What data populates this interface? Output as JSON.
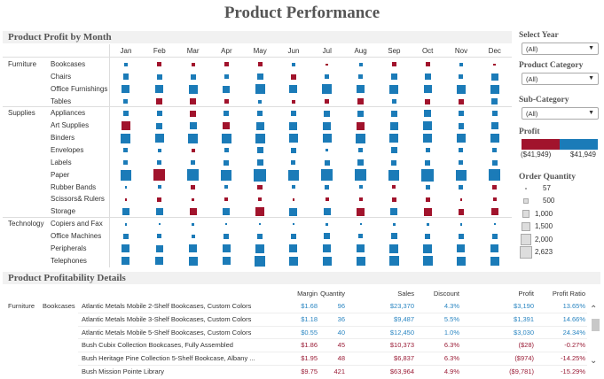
{
  "title": "Product Performance",
  "profit_by_month": {
    "title": "Product Profit by Month",
    "months": [
      "Jan",
      "Feb",
      "Mar",
      "Apr",
      "May",
      "Jun",
      "Jul",
      "Aug",
      "Sep",
      "Oct",
      "Nov",
      "Dec"
    ],
    "colors": {
      "positive": "#1b7bb8",
      "negative": "#a1132c"
    },
    "groups": [
      {
        "category": "Furniture",
        "rows": [
          {
            "name": "Bookcases",
            "qty": [
              215,
              335,
              215,
              335,
              335,
              215,
              120,
              215,
              335,
              335,
              215,
              120
            ],
            "neg": [
              0,
              1,
              1,
              1,
              1,
              0,
              1,
              0,
              1,
              1,
              0,
              1
            ]
          },
          {
            "name": "Chairs",
            "qty": [
              655,
              480,
              480,
              335,
              655,
              480,
              335,
              335,
              655,
              655,
              335,
              855
            ],
            "neg": [
              0,
              0,
              0,
              0,
              0,
              1,
              0,
              0,
              0,
              0,
              0,
              0
            ]
          },
          {
            "name": "Office Furnishings",
            "qty": [
              1085,
              1085,
              1340,
              855,
              1620,
              1085,
              1620,
              1085,
              1340,
              1085,
              1340,
              1340
            ],
            "neg": [
              0,
              0,
              0,
              0,
              0,
              0,
              0,
              0,
              0,
              0,
              0,
              0
            ]
          },
          {
            "name": "Tables",
            "qty": [
              335,
              655,
              655,
              335,
              215,
              215,
              335,
              655,
              335,
              480,
              480,
              655
            ],
            "neg": [
              0,
              1,
              1,
              1,
              0,
              1,
              1,
              1,
              0,
              1,
              1,
              0
            ]
          }
        ]
      },
      {
        "category": "Supplies",
        "rows": [
          {
            "name": "Appliances",
            "qty": [
              480,
              480,
              655,
              480,
              480,
              480,
              655,
              655,
              655,
              855,
              480,
              480
            ],
            "neg": [
              0,
              0,
              1,
              0,
              0,
              0,
              0,
              0,
              0,
              0,
              0,
              0
            ]
          },
          {
            "name": "Art Supplies",
            "qty": [
              1340,
              655,
              855,
              855,
              1085,
              1085,
              1085,
              1085,
              1085,
              1340,
              655,
              855
            ],
            "neg": [
              1,
              0,
              0,
              1,
              0,
              0,
              0,
              1,
              0,
              0,
              0,
              0
            ]
          },
          {
            "name": "Binders",
            "qty": [
              1620,
              1340,
              1620,
              1620,
              1620,
              1340,
              1340,
              1620,
              1340,
              1340,
              1340,
              1340
            ],
            "neg": [
              0,
              0,
              0,
              0,
              0,
              0,
              0,
              0,
              0,
              0,
              0,
              0
            ]
          },
          {
            "name": "Envelopes",
            "qty": [
              335,
              215,
              215,
              335,
              655,
              480,
              120,
              335,
              655,
              335,
              335,
              335
            ],
            "neg": [
              0,
              0,
              1,
              0,
              0,
              0,
              0,
              0,
              0,
              0,
              0,
              0
            ]
          },
          {
            "name": "Labels",
            "qty": [
              335,
              335,
              335,
              480,
              655,
              335,
              480,
              655,
              480,
              480,
              335,
              480
            ],
            "neg": [
              0,
              0,
              0,
              0,
              0,
              0,
              0,
              0,
              0,
              0,
              0,
              0
            ]
          },
          {
            "name": "Paper",
            "qty": [
              1925,
              2260,
              2260,
              1925,
              2623,
              1925,
              2260,
              2260,
              1925,
              2623,
              1925,
              2260
            ],
            "neg": [
              0,
              1,
              0,
              0,
              0,
              0,
              0,
              0,
              0,
              0,
              0,
              0
            ]
          },
          {
            "name": "Rubber Bands",
            "qty": [
              120,
              215,
              335,
              215,
              480,
              215,
              335,
              215,
              215,
              335,
              335,
              335
            ],
            "neg": [
              0,
              0,
              1,
              0,
              1,
              0,
              0,
              0,
              1,
              0,
              0,
              1
            ]
          },
          {
            "name": "Scissors& Rulers",
            "qty": [
              120,
              335,
              120,
              215,
              215,
              120,
              215,
              215,
              335,
              335,
              120,
              215
            ],
            "neg": [
              1,
              1,
              1,
              1,
              1,
              1,
              1,
              1,
              1,
              1,
              1,
              1
            ]
          },
          {
            "name": "Storage",
            "qty": [
              855,
              855,
              855,
              855,
              1340,
              1085,
              855,
              1085,
              855,
              1085,
              655,
              855
            ],
            "neg": [
              0,
              0,
              1,
              0,
              1,
              0,
              0,
              1,
              0,
              1,
              1,
              1
            ]
          }
        ]
      },
      {
        "category": "Technology",
        "rows": [
          {
            "name": "Copiers and Fax",
            "qty": [
              120,
              57,
              120,
              57,
              57,
              57,
              120,
              57,
              120,
              120,
              120,
              57
            ],
            "neg": [
              0,
              0,
              0,
              0,
              0,
              0,
              0,
              0,
              0,
              0,
              0,
              0
            ]
          },
          {
            "name": "Office Machines",
            "qty": [
              480,
              335,
              215,
              480,
              480,
              480,
              655,
              335,
              655,
              480,
              480,
              480
            ],
            "neg": [
              0,
              0,
              0,
              0,
              0,
              0,
              0,
              0,
              0,
              0,
              0,
              0
            ]
          },
          {
            "name": "Peripherals",
            "qty": [
              1085,
              855,
              1085,
              1085,
              1340,
              1085,
              1085,
              1085,
              1340,
              1340,
              1085,
              1085
            ],
            "neg": [
              0,
              0,
              0,
              0,
              0,
              0,
              0,
              0,
              0,
              0,
              0,
              0
            ]
          },
          {
            "name": "Telephones",
            "qty": [
              1085,
              1085,
              1340,
              1085,
              1925,
              1340,
              1340,
              1340,
              1620,
              1620,
              1340,
              1340
            ],
            "neg": [
              0,
              0,
              0,
              0,
              0,
              0,
              0,
              0,
              0,
              0,
              0,
              0
            ]
          }
        ]
      }
    ]
  },
  "filters": {
    "year": {
      "label": "Select Year",
      "value": "(All)"
    },
    "category": {
      "label": "Product Category",
      "value": "(All)"
    },
    "subcategory": {
      "label": "Sub-Category",
      "value": "(All)"
    }
  },
  "profit_legend": {
    "label": "Profit",
    "min": "($41,949)",
    "max": "$41,949"
  },
  "quantity_legend": {
    "label": "Order Quantity",
    "items": [
      "57",
      "500",
      "1,000",
      "1,500",
      "2,000",
      "2,623"
    ],
    "values": [
      57,
      500,
      1000,
      1500,
      2000,
      2623
    ]
  },
  "details": {
    "title": "Product Profitability Details",
    "columns": [
      "Margin",
      "Quantity",
      "Sales",
      "Discount",
      "Profit",
      "Profit Ratio"
    ],
    "category": "Furniture",
    "subcategory": "Bookcases",
    "rows": [
      {
        "name": "Atlantic Metals Mobile 2-Shelf Bookcases, Custom Colors",
        "cells": [
          "$1.68",
          "96",
          "$23,370",
          "4.3%",
          "$3,190",
          "13.65%"
        ],
        "neg": false
      },
      {
        "name": "Atlantic Metals Mobile 3-Shelf Bookcases, Custom Colors",
        "cells": [
          "$1.18",
          "36",
          "$9,487",
          "5.5%",
          "$1,391",
          "14.66%"
        ],
        "neg": false
      },
      {
        "name": "Atlantic Metals Mobile 5-Shelf Bookcases, Custom Colors",
        "cells": [
          "$0.55",
          "40",
          "$12,450",
          "1.0%",
          "$3,030",
          "24.34%"
        ],
        "neg": false
      },
      {
        "name": "Bush Cubix Collection Bookcases, Fully Assembled",
        "cells": [
          "$1.86",
          "45",
          "$10,373",
          "6.3%",
          "($28)",
          "-0.27%"
        ],
        "neg": true
      },
      {
        "name": "Bush Heritage Pine Collection 5-Shelf Bookcase, Albany ...",
        "cells": [
          "$1.95",
          "48",
          "$6,837",
          "6.3%",
          "($974)",
          "-14.25%"
        ],
        "neg": true
      },
      {
        "name": "Bush Mission Pointe Library",
        "cells": [
          "$9.75",
          "421",
          "$63,964",
          "4.9%",
          "($9,781)",
          "-15.29%"
        ],
        "neg": true
      }
    ],
    "text_colors": {
      "positive": "#2b86c2",
      "negative": "#9a1c36"
    }
  }
}
